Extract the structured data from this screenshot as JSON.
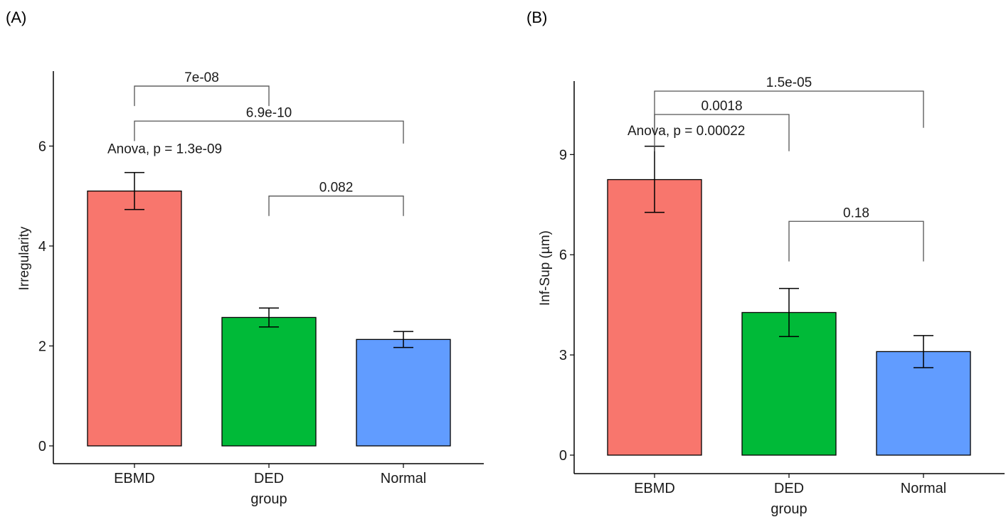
{
  "panels": [
    {
      "label": "(A)",
      "chart": {
        "type": "bar",
        "xlabel": "group",
        "ylabel": "Irregularity",
        "ylim": [
          0,
          7.5
        ],
        "yticks": [
          0,
          2,
          4,
          6
        ],
        "categories": [
          "EBMD",
          "DED",
          "Normal"
        ],
        "values": [
          5.1,
          2.57,
          2.13
        ],
        "error_low": [
          4.73,
          2.38,
          1.97
        ],
        "error_high": [
          5.47,
          2.76,
          2.29
        ],
        "colors": [
          "#F8766D",
          "#00BA38",
          "#619CFF"
        ],
        "anova_label": "Anova, p = 1.3e-09",
        "anova_y": 6.0,
        "comparisons": [
          {
            "from": 0,
            "to": 1,
            "label": "7e-08",
            "y": 7.2,
            "left_drop": 6.8,
            "right_drop": 6.8
          },
          {
            "from": 0,
            "to": 2,
            "label": "6.9e-10",
            "y": 6.5,
            "left_drop": 6.1,
            "right_drop": 6.05
          },
          {
            "from": 1,
            "to": 2,
            "label": "0.082",
            "y": 5.0,
            "left_drop": 4.6,
            "right_drop": 4.6
          }
        ]
      }
    },
    {
      "label": "(B)",
      "chart": {
        "type": "bar",
        "xlabel": "group",
        "ylabel": "Inf-Sup (µm)",
        "ylim": [
          0,
          11.2
        ],
        "yticks": [
          0,
          3,
          6,
          9
        ],
        "categories": [
          "EBMD",
          "DED",
          "Normal"
        ],
        "values": [
          8.25,
          4.27,
          3.1
        ],
        "error_low": [
          7.27,
          3.55,
          2.62
        ],
        "error_high": [
          9.25,
          4.99,
          3.58
        ],
        "colors": [
          "#F8766D",
          "#00BA38",
          "#619CFF"
        ],
        "anova_label": "Anova, p = 0.00022",
        "anova_y": 9.8,
        "comparisons": [
          {
            "from": 0,
            "to": 2,
            "label": "1.5e-05",
            "y": 10.9,
            "left_drop": 9.8,
            "right_drop": 9.8
          },
          {
            "from": 0,
            "to": 1,
            "label": "0.0018",
            "y": 10.2,
            "left_drop": 9.1,
            "right_drop": 9.1
          },
          {
            "from": 1,
            "to": 2,
            "label": "0.18",
            "y": 7.0,
            "left_drop": 5.8,
            "right_drop": 5.8
          }
        ]
      }
    }
  ]
}
